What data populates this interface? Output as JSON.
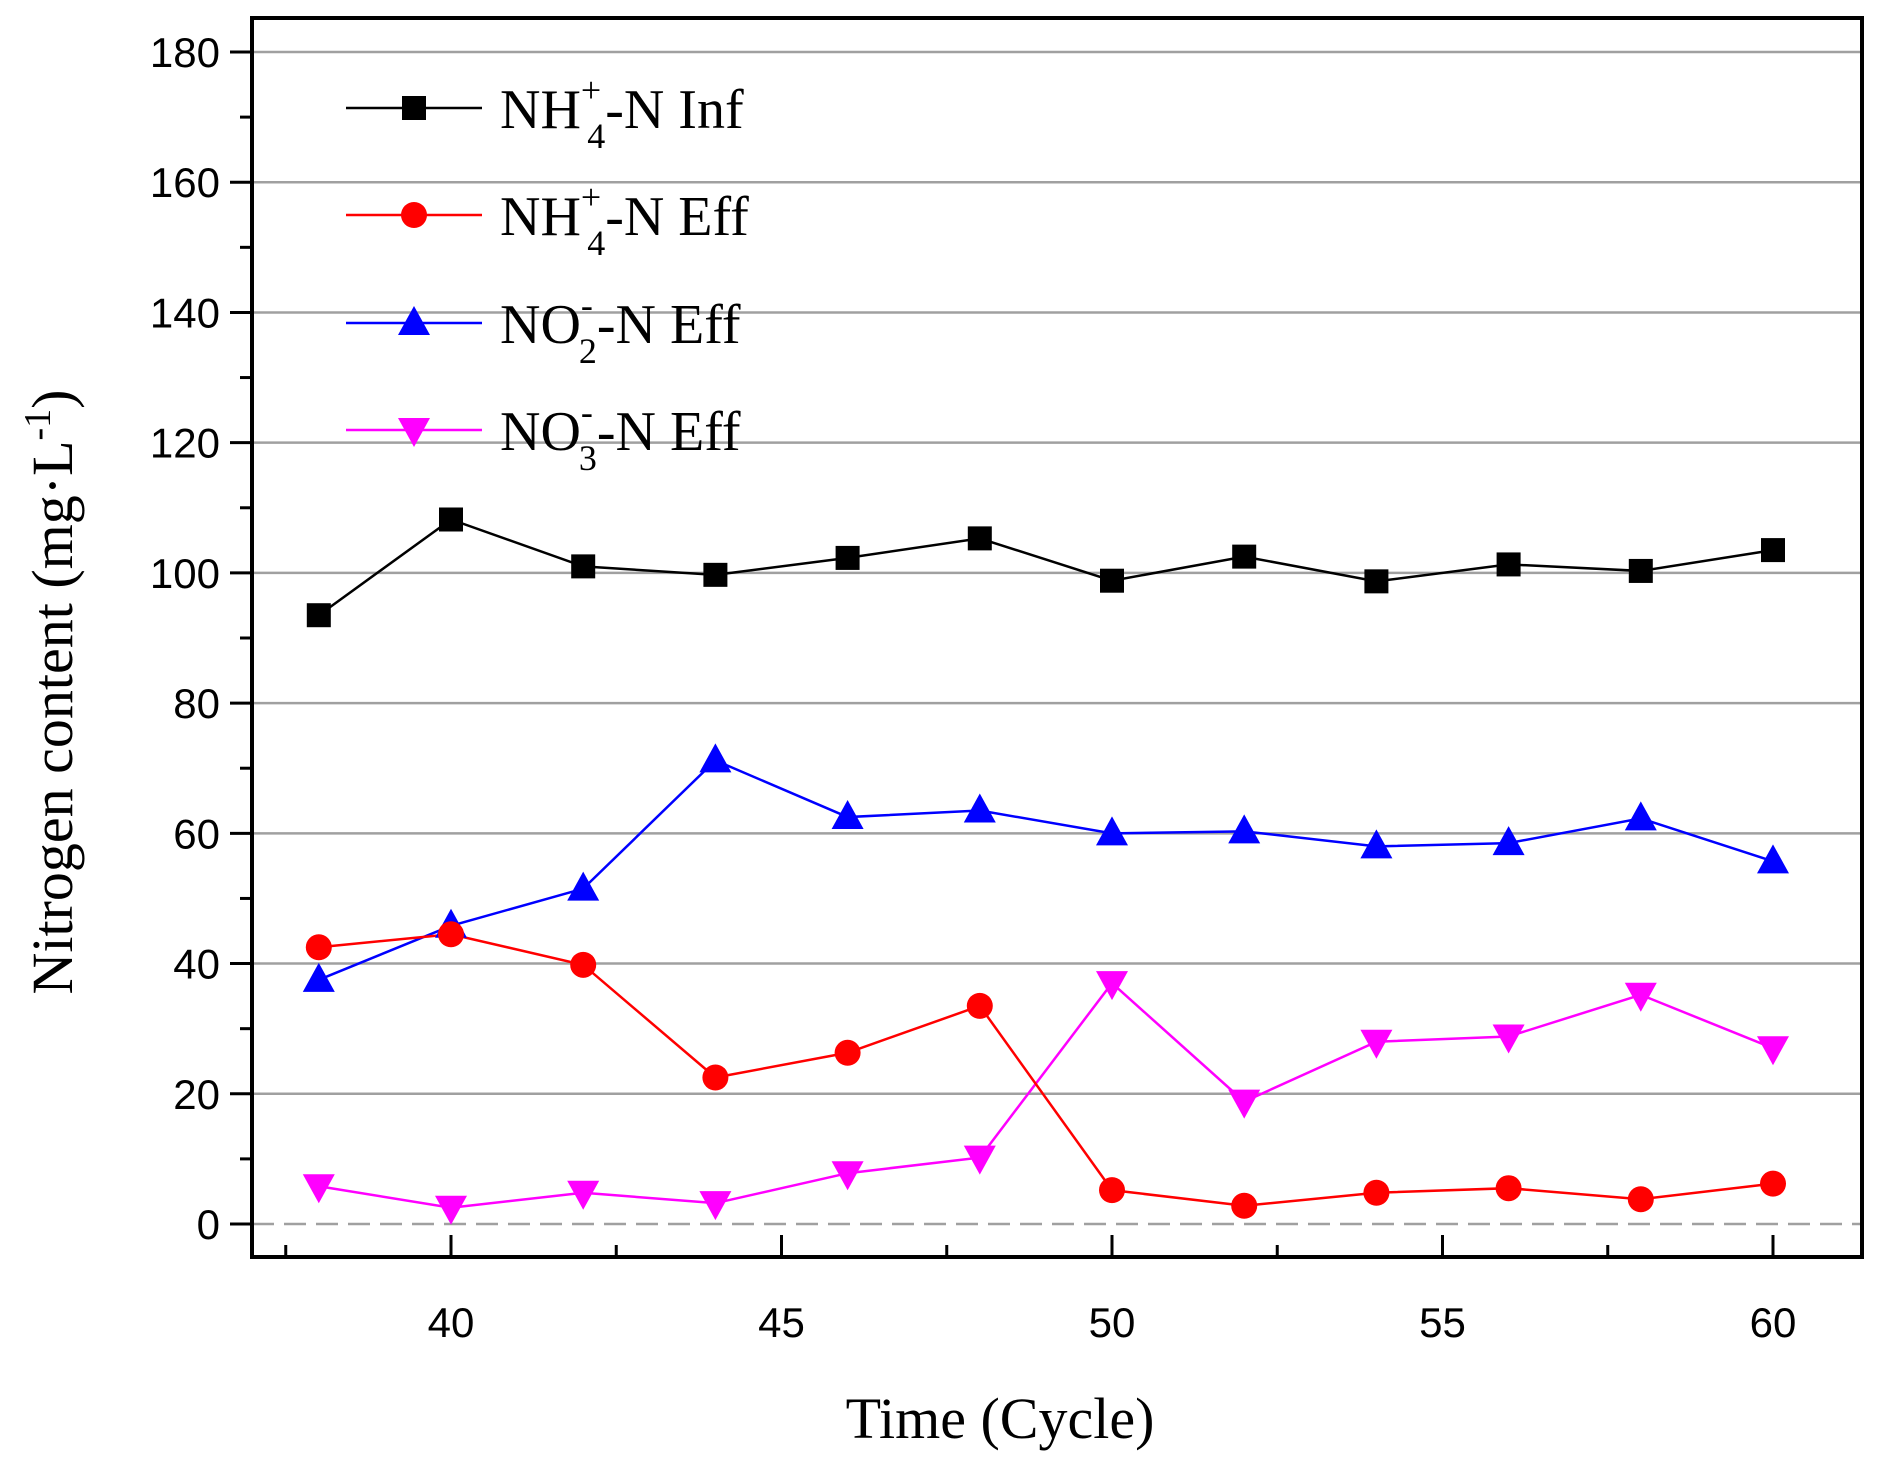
{
  "chart_data": {
    "type": "line",
    "title": "",
    "xlabel": "Time (Cycle)",
    "ylabel": "Nitrogen content (mg·L-1)",
    "ylabel_parts": {
      "main": "Nitrogen content (mg·L",
      "sup": "-1",
      "close": ")"
    },
    "xlim": [
      37,
      61
    ],
    "ylim": [
      0,
      180
    ],
    "xticks": [
      40,
      45,
      50,
      55,
      60
    ],
    "yticks": [
      0,
      20,
      40,
      60,
      80,
      100,
      120,
      140,
      160,
      180
    ],
    "grid": "horizontal",
    "legend_position": "top-left",
    "x": [
      38,
      40,
      42,
      44,
      46,
      48,
      50,
      52,
      54,
      56,
      58,
      60
    ],
    "series": [
      {
        "name": "NH4+-N Inf",
        "label": {
          "base": "NH",
          "sub": "4",
          "sup": "+",
          "rest": "-N Inf"
        },
        "marker": "square",
        "color": "#000000",
        "values": [
          93.5,
          108.2,
          101.0,
          99.7,
          102.3,
          105.3,
          98.8,
          102.5,
          98.7,
          101.3,
          100.3,
          103.5
        ]
      },
      {
        "name": "NH4+-N Eff",
        "label": {
          "base": "NH",
          "sub": "4",
          "sup": "+",
          "rest": "-N Eff"
        },
        "marker": "circle",
        "color": "#ff0000",
        "values": [
          42.5,
          44.5,
          39.8,
          22.5,
          26.3,
          33.5,
          5.2,
          2.8,
          4.8,
          5.5,
          3.8,
          6.2
        ]
      },
      {
        "name": "NO2--N Eff",
        "label": {
          "base": "NO",
          "sub": "2",
          "sup": "-",
          "rest": "-N Eff"
        },
        "marker": "triangle-up",
        "color": "#0000ff",
        "values": [
          37.5,
          45.8,
          51.5,
          71.2,
          62.5,
          63.5,
          60.0,
          60.3,
          58.0,
          58.5,
          62.3,
          55.7
        ]
      },
      {
        "name": "NO3--N Eff",
        "label": {
          "base": "NO",
          "sub": "3",
          "sup": "-",
          "rest": "-N Eff"
        },
        "marker": "triangle-down",
        "color": "#ff00ff",
        "values": [
          5.8,
          2.5,
          4.8,
          3.2,
          7.8,
          10.2,
          37.0,
          18.8,
          28.0,
          28.8,
          35.2,
          27.0
        ]
      }
    ]
  }
}
